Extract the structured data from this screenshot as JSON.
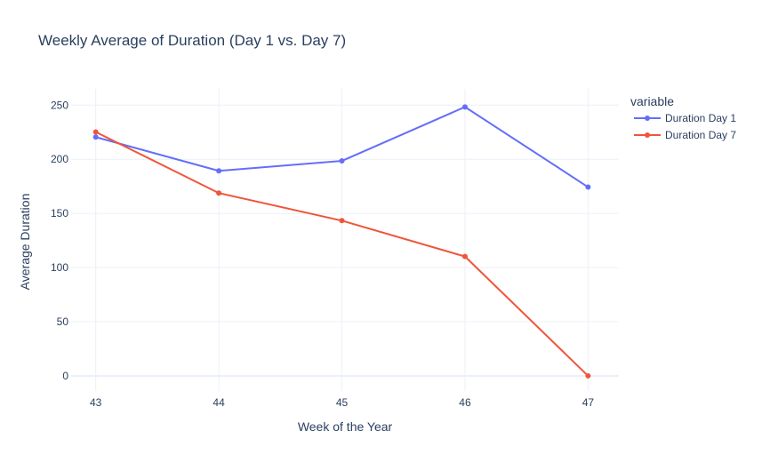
{
  "chart_data": {
    "type": "line",
    "title": "Weekly Average of Duration (Day 1 vs. Day 7)",
    "xlabel": "Week of the Year",
    "ylabel": "Average Duration",
    "x": [
      43,
      44,
      45,
      46,
      47
    ],
    "x_ticks": [
      "43",
      "44",
      "45",
      "46",
      "47"
    ],
    "y_ticks": [
      0,
      50,
      100,
      150,
      200,
      250
    ],
    "ylim": [
      -14,
      265
    ],
    "xlim": [
      42.8,
      47.25
    ],
    "grid": true,
    "legend": {
      "title": "variable",
      "placement": "top-right"
    },
    "series": [
      {
        "name": "Duration Day 1",
        "color": "#636efa",
        "values": [
          220.5,
          189.3,
          198.5,
          248.3,
          174.3
        ]
      },
      {
        "name": "Duration Day 7",
        "color": "#ef553b",
        "values": [
          225.2,
          168.8,
          143.3,
          110.2,
          0
        ]
      }
    ]
  },
  "colors": {
    "text": "#2a3f5f",
    "grid": "#ebf0f8",
    "zero_line": "#ebf0f8",
    "background": "#ffffff"
  }
}
